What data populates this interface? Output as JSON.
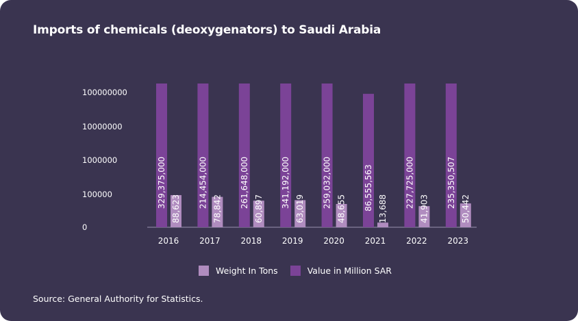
{
  "title": "Imports of chemicals (deoxygenators) to Saudi Arabia",
  "source": "Source: General Authority for Statistics.",
  "chart_data": {
    "type": "bar",
    "categories": [
      "2016",
      "2017",
      "2018",
      "2019",
      "2020",
      "2021",
      "2022",
      "2023"
    ],
    "series": [
      {
        "name": "Value in Million SAR",
        "color": "#7b4397",
        "values": [
          329375000,
          214454000,
          261648000,
          341192000,
          259032000,
          86555563,
          227725000,
          235350507
        ],
        "labels": [
          "329,375,000",
          "214,454,000",
          "261,648,000",
          "341,192,000",
          "259,032,000",
          "86,555,563",
          "227,725,000",
          "235,350,507"
        ]
      },
      {
        "name": "Weight In Tons",
        "color": "#b08cbf",
        "values": [
          88623,
          78842,
          60897,
          63019,
          48655,
          13688,
          41903,
          50442
        ],
        "labels": [
          "88,623",
          "78,842",
          "60,897",
          "63,019",
          "48,655",
          "13,688",
          "41,903",
          "50,442"
        ]
      }
    ],
    "yscale": "log",
    "yticks": [
      "0",
      "100000",
      "1000000",
      "10000000",
      "100000000"
    ],
    "legend_position": "bottom",
    "legend": [
      "Weight In Tons",
      "Value in Million SAR"
    ],
    "grid": false
  }
}
